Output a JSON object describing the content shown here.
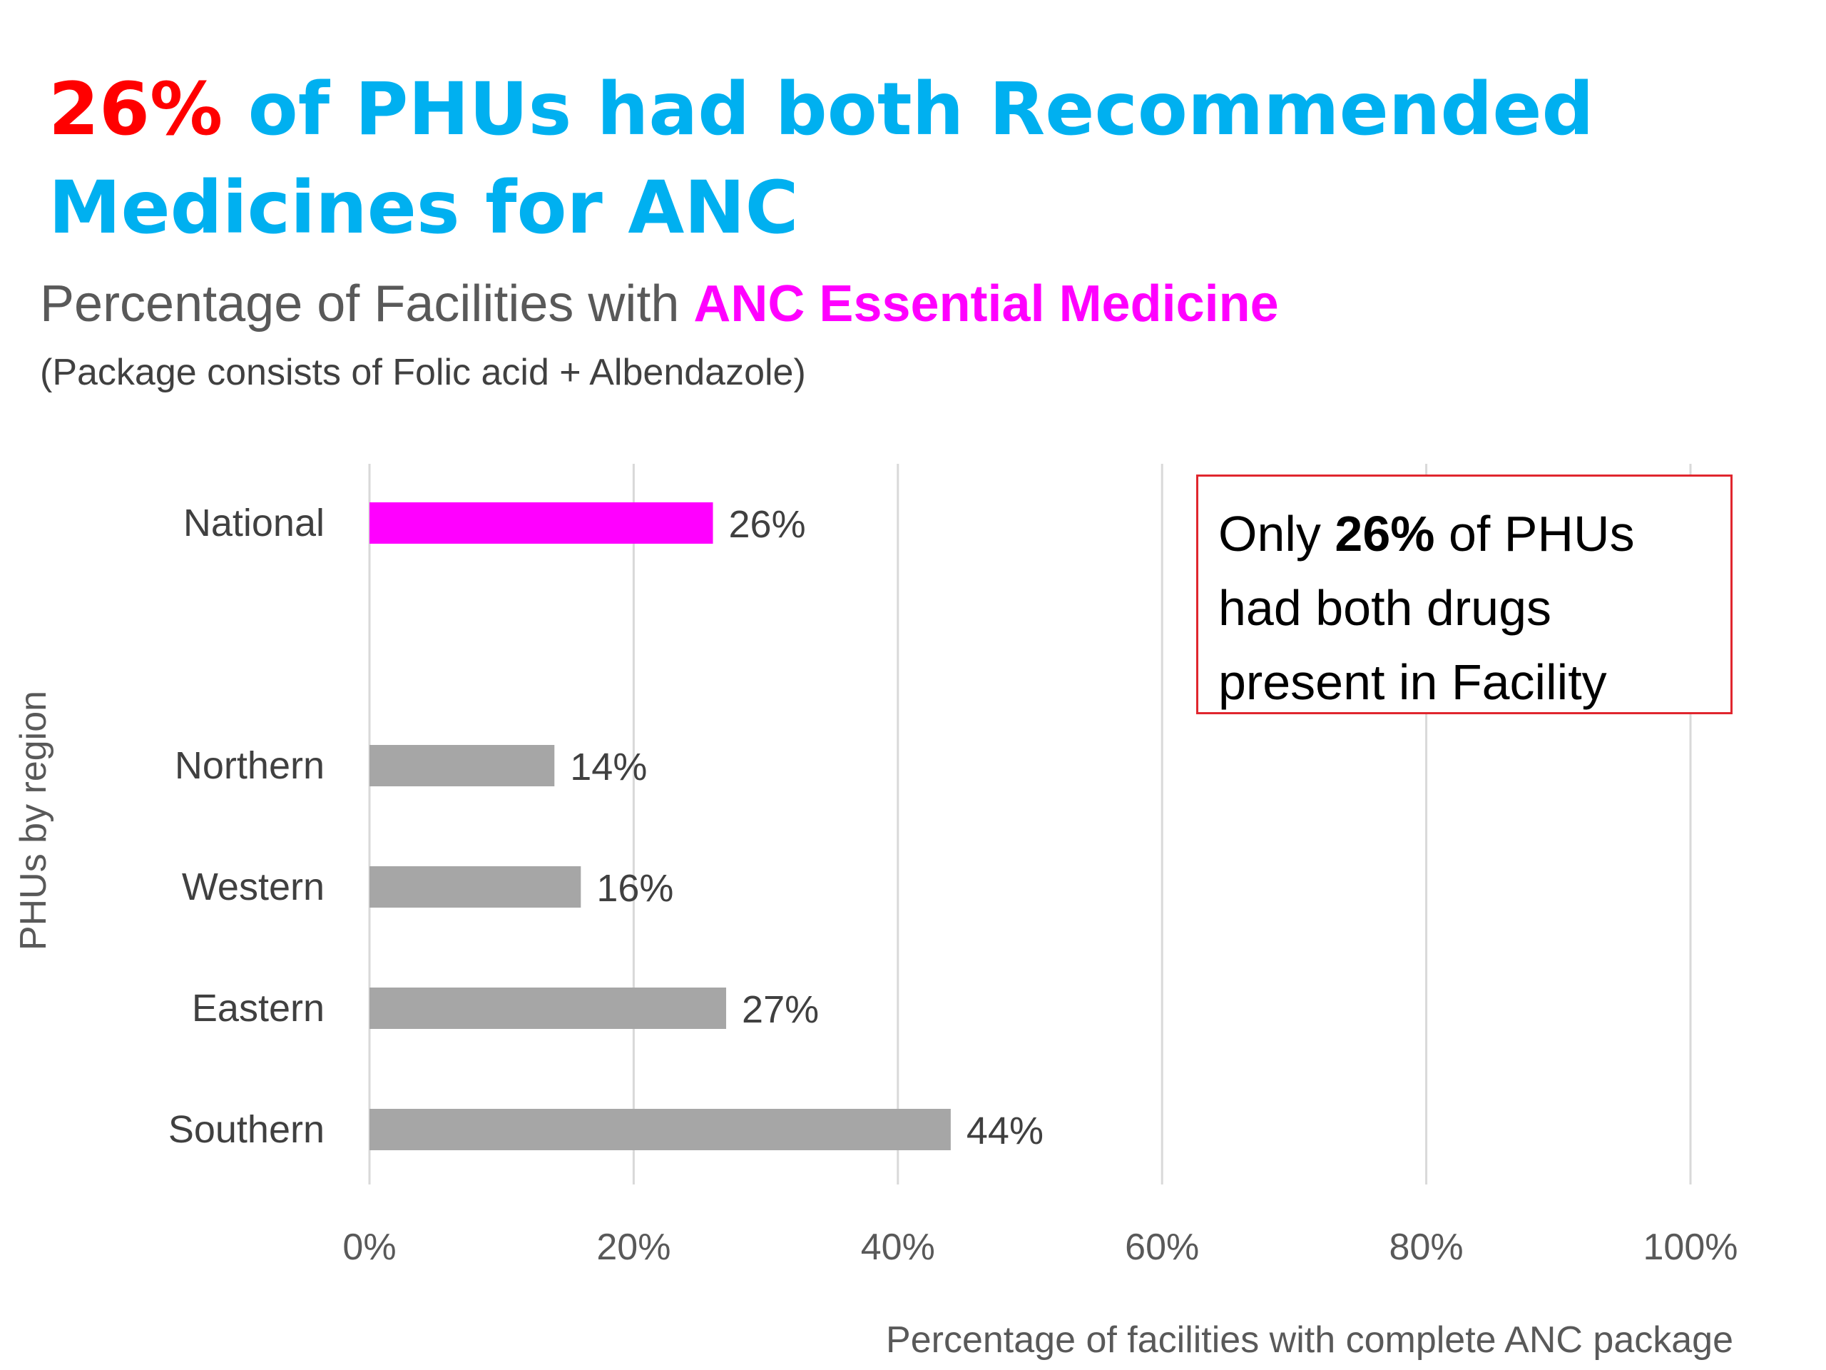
{
  "headline": {
    "highlight": "26%",
    "rest": " of PHUs had both Recommended Medicines for ANC"
  },
  "subtitle": {
    "prefix": "Percentage of Facilities with ",
    "emphasis": "ANC Essential Medicine"
  },
  "note": "(Package consists of Folic acid + Albendazole)",
  "callout": {
    "pre": "Only ",
    "bold": "26%",
    "post": " of PHUs had both drugs present in Facility"
  },
  "colors": {
    "headline_highlight": "#ff0000",
    "headline_text": "#00b0f0",
    "subtitle_emphasis": "#ff00ff",
    "national_bar": "#ff00ff",
    "region_bar": "#a6a6a6",
    "gridline": "#d9d9d9",
    "callout_border": "#e0262e"
  },
  "chart_data": {
    "type": "bar",
    "orientation": "horizontal",
    "categories": [
      "National",
      "Northern",
      "Western",
      "Eastern",
      "Southern"
    ],
    "values": [
      26,
      14,
      16,
      27,
      44
    ],
    "value_labels": [
      "26%",
      "14%",
      "16%",
      "27%",
      "44%"
    ],
    "xlabel": "Percentage of facilities with complete ANC package",
    "ylabel": "PHUs by region",
    "xlim": [
      0,
      100
    ],
    "xticks": [
      0,
      20,
      40,
      60,
      80,
      100
    ],
    "xtick_labels": [
      "0%",
      "20%",
      "40%",
      "60%",
      "80%",
      "100%"
    ],
    "grid": "vertical",
    "legend": "none"
  }
}
